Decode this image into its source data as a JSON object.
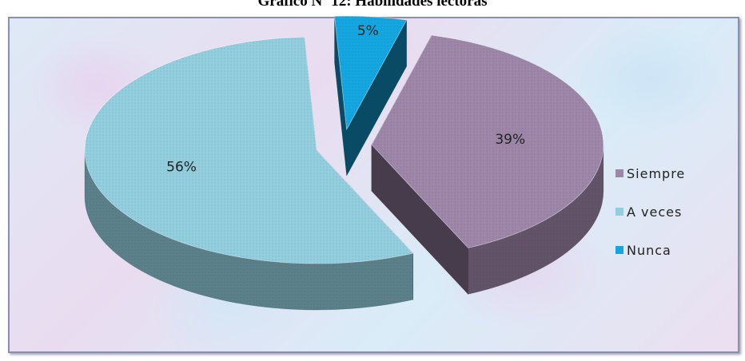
{
  "chart_data": {
    "type": "pie",
    "title": "Gráfico Nº 12: Habilidades lectoras",
    "categories": [
      "Siempre",
      "A veces",
      "Nunca"
    ],
    "values": [
      39,
      56,
      5
    ],
    "labels": [
      "39%",
      "56%",
      "5%"
    ],
    "legend": "right",
    "colors": {
      "Siempre": "#9e86a8",
      "A veces": "#92cedd",
      "Nunca": "#14a6e0"
    }
  }
}
